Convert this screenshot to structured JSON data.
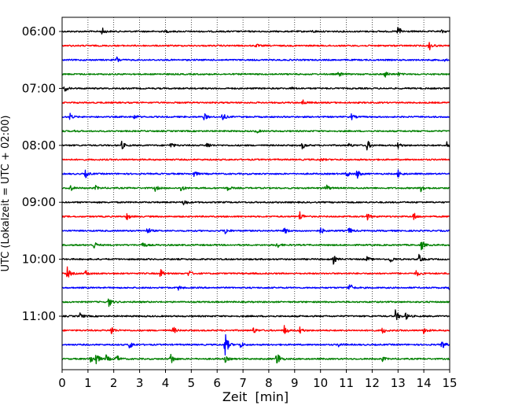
{
  "chart_data": {
    "type": "line",
    "title": "",
    "xlabel": "Zeit  [min]",
    "ylabel": "UTC (Lokalzeit = UTC + 02:00)",
    "xlim": [
      0,
      15
    ],
    "x_ticks": [
      "0",
      "1",
      "2",
      "3",
      "4",
      "5",
      "6",
      "7",
      "8",
      "9",
      "10",
      "11",
      "12",
      "13",
      "14",
      "15"
    ],
    "y_tick_labels": [
      "06:00",
      "07:00",
      "08:00",
      "09:00",
      "10:00",
      "11:00"
    ],
    "grid": "vertical dotted at each minute",
    "trace_interval_min": 15,
    "colors_cycle": [
      "#000000",
      "#ff0000",
      "#0000ff",
      "#008000"
    ],
    "series": [
      {
        "start": "06:00",
        "color": "#000000",
        "events": [
          [
            1.55,
            0.5
          ],
          [
            4.0,
            0.15
          ],
          [
            9.7,
            0.15
          ],
          [
            13.0,
            0.9
          ],
          [
            14.7,
            0.2
          ]
        ]
      },
      {
        "start": "06:15",
        "color": "#ff0000",
        "events": [
          [
            7.5,
            0.25
          ],
          [
            14.2,
            0.7
          ]
        ]
      },
      {
        "start": "06:30",
        "color": "#0000ff",
        "events": [
          [
            2.1,
            0.5
          ],
          [
            14.8,
            0.15
          ]
        ]
      },
      {
        "start": "06:45",
        "color": "#008000",
        "events": [
          [
            10.7,
            0.4
          ],
          [
            12.5,
            0.5
          ],
          [
            13.0,
            0.2
          ]
        ]
      },
      {
        "start": "07:00",
        "color": "#000000",
        "events": [
          [
            0.1,
            0.4
          ],
          [
            8.9,
            0.15
          ]
        ]
      },
      {
        "start": "07:15",
        "color": "#ff0000",
        "events": [
          [
            9.3,
            0.45
          ]
        ]
      },
      {
        "start": "07:30",
        "color": "#0000ff",
        "events": [
          [
            0.3,
            0.5
          ],
          [
            2.8,
            0.35
          ],
          [
            5.5,
            0.5
          ],
          [
            6.2,
            0.6
          ],
          [
            11.2,
            0.4
          ]
        ]
      },
      {
        "start": "07:45",
        "color": "#008000",
        "events": [
          [
            0.5,
            0.15
          ],
          [
            7.5,
            0.35
          ]
        ]
      },
      {
        "start": "08:00",
        "color": "#000000",
        "events": [
          [
            2.3,
            0.6
          ],
          [
            4.2,
            0.45
          ],
          [
            5.6,
            0.6
          ],
          [
            9.3,
            0.5
          ],
          [
            11.1,
            0.3
          ],
          [
            11.8,
            0.85
          ],
          [
            13.0,
            0.5
          ],
          [
            14.9,
            0.55
          ]
        ]
      },
      {
        "start": "08:15",
        "color": "#ff0000",
        "events": [
          [
            10.0,
            0.2
          ]
        ]
      },
      {
        "start": "08:30",
        "color": "#0000ff",
        "events": [
          [
            0.9,
            0.55
          ],
          [
            5.1,
            0.45
          ],
          [
            11.0,
            0.55
          ],
          [
            11.4,
            0.75
          ],
          [
            13.0,
            0.6
          ]
        ]
      },
      {
        "start": "08:45",
        "color": "#008000",
        "events": [
          [
            0.3,
            0.55
          ],
          [
            1.3,
            0.3
          ],
          [
            3.6,
            0.4
          ],
          [
            4.6,
            0.55
          ],
          [
            6.4,
            0.35
          ],
          [
            10.2,
            0.65
          ],
          [
            13.9,
            0.75
          ]
        ]
      },
      {
        "start": "09:00",
        "color": "#000000",
        "events": [
          [
            4.7,
            0.55
          ]
        ]
      },
      {
        "start": "09:15",
        "color": "#ff0000",
        "events": [
          [
            2.5,
            0.5
          ],
          [
            9.2,
            0.75
          ],
          [
            11.8,
            0.5
          ],
          [
            13.6,
            0.6
          ]
        ]
      },
      {
        "start": "09:30",
        "color": "#0000ff",
        "events": [
          [
            3.3,
            0.55
          ],
          [
            6.3,
            0.55
          ],
          [
            8.6,
            0.55
          ],
          [
            10.0,
            0.5
          ],
          [
            11.1,
            0.5
          ]
        ]
      },
      {
        "start": "09:45",
        "color": "#008000",
        "events": [
          [
            1.2,
            0.75
          ],
          [
            3.1,
            0.5
          ],
          [
            8.3,
            0.5
          ],
          [
            13.9,
            0.75
          ]
        ]
      },
      {
        "start": "10:00",
        "color": "#000000",
        "events": [
          [
            10.5,
            0.6
          ],
          [
            11.8,
            0.35
          ],
          [
            12.7,
            0.55
          ],
          [
            13.8,
            0.7
          ]
        ]
      },
      {
        "start": "10:15",
        "color": "#ff0000",
        "events": [
          [
            0.2,
            0.85
          ],
          [
            0.9,
            0.5
          ],
          [
            3.8,
            0.7
          ],
          [
            4.9,
            0.5
          ],
          [
            13.7,
            0.5
          ]
        ]
      },
      {
        "start": "10:30",
        "color": "#0000ff",
        "events": [
          [
            4.5,
            0.3
          ],
          [
            11.1,
            0.9
          ],
          [
            15.0,
            0.6
          ]
        ]
      },
      {
        "start": "10:45",
        "color": "#008000",
        "events": [
          [
            1.8,
            0.75
          ]
        ]
      },
      {
        "start": "11:00",
        "color": "#000000",
        "events": [
          [
            0.7,
            0.45
          ],
          [
            12.9,
            0.9
          ],
          [
            13.3,
            0.5
          ]
        ]
      },
      {
        "start": "11:15",
        "color": "#ff0000",
        "events": [
          [
            1.9,
            0.7
          ],
          [
            4.3,
            0.55
          ],
          [
            7.4,
            0.45
          ],
          [
            8.6,
            0.75
          ],
          [
            9.2,
            0.5
          ],
          [
            12.4,
            0.5
          ],
          [
            14.0,
            0.5
          ]
        ]
      },
      {
        "start": "11:30",
        "color": "#0000ff",
        "events": [
          [
            2.6,
            0.7
          ],
          [
            6.3,
            2.0
          ],
          [
            6.9,
            0.5
          ],
          [
            10.7,
            0.3
          ],
          [
            14.7,
            0.7
          ]
        ]
      },
      {
        "start": "11:45",
        "color": "#008000",
        "events": [
          [
            1.1,
            0.6
          ],
          [
            1.3,
            1.0
          ],
          [
            1.7,
            0.55
          ],
          [
            2.1,
            0.7
          ],
          [
            4.2,
            1.0
          ],
          [
            6.3,
            0.5
          ],
          [
            8.3,
            1.5
          ],
          [
            12.4,
            0.3
          ]
        ]
      }
    ]
  }
}
